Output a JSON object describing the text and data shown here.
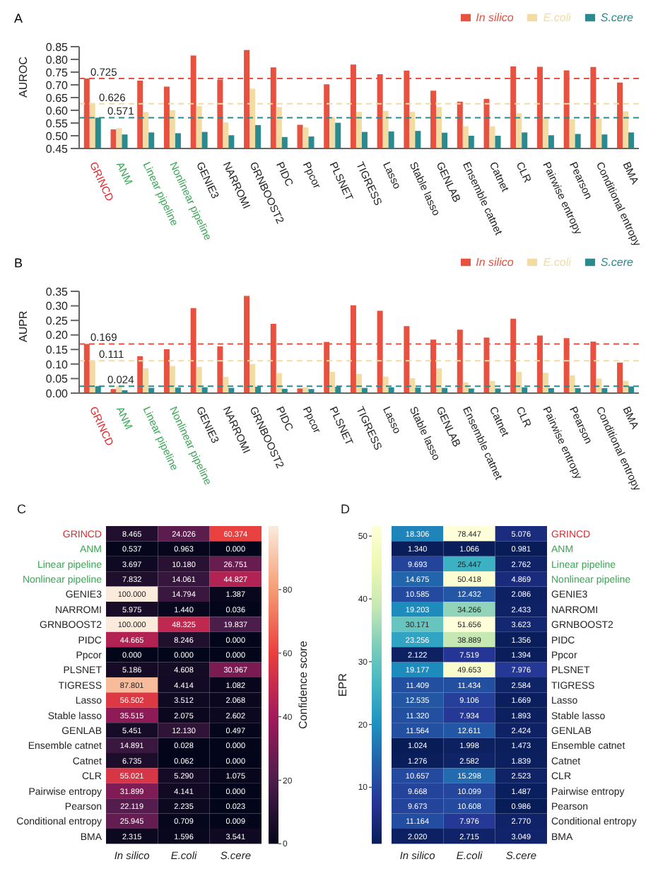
{
  "chart_data": [
    {
      "type": "bar",
      "title": "A",
      "ylabel": "AUROC",
      "categories": [
        "GRINCD",
        "ANM",
        "Linear pipeline",
        "Nonlinear pipeline",
        "GENIE3",
        "NARROMI",
        "GRNBOOST2",
        "PIDC",
        "Ppcor",
        "PLSNET",
        "TIGRESS",
        "Lasso",
        "Stable lasso",
        "GENLAB",
        "Ensemble catnet",
        "Catnet",
        "CLR",
        "Pairwise entropy",
        "Pearson",
        "Conditional entropy",
        "BMA"
      ],
      "series": [
        {
          "name": "In silico",
          "color": "#e8503f",
          "values": [
            0.725,
            0.525,
            0.717,
            0.693,
            0.815,
            0.721,
            0.837,
            0.769,
            0.543,
            0.702,
            0.78,
            0.742,
            0.756,
            0.677,
            0.634,
            0.645,
            0.772,
            0.771,
            0.757,
            0.77,
            0.709
          ]
        },
        {
          "name": "E.coli",
          "color": "#f3dca4",
          "values": [
            0.626,
            0.53,
            0.593,
            0.6,
            0.617,
            0.553,
            0.685,
            0.613,
            0.533,
            0.573,
            0.594,
            0.598,
            0.594,
            0.613,
            0.537,
            0.537,
            0.588,
            0.573,
            0.565,
            0.568,
            0.596
          ]
        },
        {
          "name": "S.cere",
          "color": "#2a8a8f",
          "values": [
            0.571,
            0.505,
            0.513,
            0.51,
            0.515,
            0.502,
            0.542,
            0.495,
            0.497,
            0.551,
            0.515,
            0.517,
            0.519,
            0.512,
            0.5,
            0.5,
            0.513,
            0.502,
            0.507,
            0.505,
            0.513
          ]
        }
      ],
      "ylim": [
        0.45,
        0.85
      ],
      "yticks": [
        0.45,
        {
          "value": 0.5,
          "label": "0.50"
        },
        0.55,
        {
          "value": 0.6,
          "label": "0.60"
        },
        0.65,
        {
          "value": 0.7,
          "label": "0.70"
        },
        0.75,
        {
          "value": 0.8,
          "label": "0.80"
        },
        0.85
      ],
      "legend": "top right",
      "ref_lines": [
        {
          "axis": "y",
          "value": 0.725,
          "label": "0.725",
          "color": "#e8503f",
          "line_style": "dashed"
        },
        {
          "axis": "y",
          "value": 0.626,
          "label": "0.626",
          "color": "#f3dca4",
          "line_style": "dashed"
        },
        {
          "axis": "y",
          "value": 0.571,
          "label": "0.571",
          "color": "#2a8a8f",
          "line_style": "dashed"
        }
      ]
    },
    {
      "type": "bar",
      "title": "B",
      "ylabel": "AUPR",
      "categories": [
        "GRINCD",
        "ANM",
        "Linear pipeline",
        "Nonlinear pipeline",
        "GENIE3",
        "NARROMI",
        "GRNBOOST2",
        "PIDC",
        "Ppcor",
        "PLSNET",
        "TIGRESS",
        "Lasso",
        "Stable lasso",
        "GENLAB",
        "Ensemble catnet",
        "Catnet",
        "CLR",
        "Pairwise entropy",
        "Pearson",
        "Conditional entropy",
        "BMA"
      ],
      "series": [
        {
          "name": "In silico",
          "color": "#e8503f",
          "values": [
            0.169,
            0.014,
            0.127,
            0.151,
            0.292,
            0.161,
            0.334,
            0.238,
            0.016,
            0.176,
            0.302,
            0.283,
            0.23,
            0.184,
            0.218,
            0.191,
            0.256,
            0.198,
            0.189,
            0.177,
            0.105
          ]
        },
        {
          "name": "E.coli",
          "color": "#f3dca4",
          "values": [
            0.111,
            0.025,
            0.085,
            0.093,
            0.09,
            0.056,
            0.1,
            0.069,
            0.02,
            0.073,
            0.066,
            0.057,
            0.051,
            0.085,
            0.037,
            0.042,
            0.073,
            0.07,
            0.061,
            0.05,
            0.042
          ]
        },
        {
          "name": "S.cere",
          "color": "#2a8a8f",
          "values": [
            0.024,
            0.01,
            0.018,
            0.019,
            0.02,
            0.018,
            0.022,
            0.015,
            0.014,
            0.022,
            0.018,
            0.02,
            0.019,
            0.018,
            0.016,
            0.016,
            0.02,
            0.017,
            0.017,
            0.017,
            0.023
          ]
        }
      ],
      "ylim": [
        0,
        0.35
      ],
      "yticks": [
        {
          "value": 0,
          "label": "0.00"
        },
        0.05,
        {
          "value": 0.1,
          "label": "0.10"
        },
        0.15,
        {
          "value": 0.2,
          "label": "0.20"
        },
        0.25,
        {
          "value": 0.3,
          "label": "0.30"
        },
        0.35
      ],
      "legend": "top right",
      "ref_lines": [
        {
          "axis": "y",
          "value": 0.169,
          "label": "0.169",
          "color": "#e8503f",
          "line_style": "dashed"
        },
        {
          "axis": "y",
          "value": 0.111,
          "label": "0.111",
          "color": "#f3dca4",
          "line_style": "dashed"
        },
        {
          "axis": "y",
          "value": 0.024,
          "label": "0.024",
          "color": "#2a8a8f",
          "line_style": "dashed"
        }
      ]
    },
    {
      "type": "heatmap",
      "title": "C",
      "clabel": "Confidence score",
      "data_labels": true,
      "categories": [
        "In silico",
        "E.coli",
        "S.cere"
      ],
      "y_categories": [
        "GRINCD",
        "ANM",
        "Linear pipeline",
        "Nonlinear pipeline",
        "GENIE3",
        "NARROMI",
        "GRNBOOST2",
        "PIDC",
        "Ppcor",
        "PLSNET",
        "TIGRESS",
        "Lasso",
        "Stable lasso",
        "GENLAB",
        "Ensemble catnet",
        "Catnet",
        "CLR",
        "Pairwise entropy",
        "Pearson",
        "Conditional entropy",
        "BMA"
      ],
      "cells": [
        [
          8.465,
          24.026,
          60.374
        ],
        [
          0.537,
          0.963,
          0
        ],
        [
          3.697,
          10.18,
          26.751
        ],
        [
          7.832,
          14.061,
          44.827
        ],
        [
          100,
          14.794,
          1.387
        ],
        [
          5.975,
          1.44,
          0.036
        ],
        [
          100,
          48.325,
          19.837
        ],
        [
          44.665,
          8.246,
          0
        ],
        [
          0,
          0,
          0
        ],
        [
          5.186,
          4.608,
          30.967
        ],
        [
          87.801,
          4.414,
          1.082
        ],
        [
          56.502,
          3.512,
          2.068
        ],
        [
          35.515,
          2.075,
          2.602
        ],
        [
          5.451,
          12.13,
          0.497
        ],
        [
          14.891,
          0.028,
          0
        ],
        [
          6.735,
          0.062,
          0
        ],
        [
          55.021,
          5.29,
          1.075
        ],
        [
          31.899,
          4.141,
          0
        ],
        [
          22.119,
          2.235,
          0.023
        ],
        [
          25.945,
          0.709,
          0.009
        ],
        [
          2.315,
          1.596,
          3.541
        ]
      ],
      "cell_labels": [
        [
          "8.465",
          "24.026",
          "60.374"
        ],
        [
          "0.537",
          "0.963",
          "0.000"
        ],
        [
          "3.697",
          "10.180",
          "26.751"
        ],
        [
          "7.832",
          "14.061",
          "44.827"
        ],
        [
          "100.000",
          "14.794",
          "1.387"
        ],
        [
          "5.975",
          "1.440",
          "0.036"
        ],
        [
          "100.000",
          "48.325",
          "19.837"
        ],
        [
          "44.665",
          "8.246",
          "0.000"
        ],
        [
          "0.000",
          "0.000",
          "0.000"
        ],
        [
          "5.186",
          "4.608",
          "30.967"
        ],
        [
          "87.801",
          "4.414",
          "1.082"
        ],
        [
          "56.502",
          "3.512",
          "2.068"
        ],
        [
          "35.515",
          "2.075",
          "2.602"
        ],
        [
          "5.451",
          "12.130",
          "0.497"
        ],
        [
          "14.891",
          "0.028",
          "0.000"
        ],
        [
          "6.735",
          "0.062",
          "0.000"
        ],
        [
          "55.021",
          "5.290",
          "1.075"
        ],
        [
          "31.899",
          "4.141",
          "0.000"
        ],
        [
          "22.119",
          "2.235",
          "0.023"
        ],
        [
          "25.945",
          "0.709",
          "0.009"
        ],
        [
          "2.315",
          "1.596",
          "3.541"
        ]
      ],
      "clim": [
        0,
        100
      ],
      "cticks": [
        0,
        20,
        40,
        60,
        80
      ]
    },
    {
      "type": "heatmap",
      "title": "D",
      "clabel": "EPR",
      "data_labels": true,
      "categories": [
        "In silico",
        "E.coli",
        "S.cere"
      ],
      "y_categories": [
        "GRINCD",
        "ANM",
        "Linear pipeline",
        "Nonlinear pipeline",
        "GENIE3",
        "NARROMI",
        "GRNBOOST2",
        "PIDC",
        "Ppcor",
        "PLSNET",
        "TIGRESS",
        "Lasso",
        "Stable lasso",
        "GENLAB",
        "Ensemble catnet",
        "Catnet",
        "CLR",
        "Pairwise entropy",
        "Pearson",
        "Conditional entropy",
        "BMA"
      ],
      "cells": [
        [
          18.306,
          78.447,
          5.076
        ],
        [
          1.34,
          1.066,
          0.981
        ],
        [
          9.693,
          25.447,
          2.762
        ],
        [
          14.675,
          50.418,
          4.869
        ],
        [
          10.585,
          12.432,
          2.086
        ],
        [
          19.203,
          34.266,
          2.433
        ],
        [
          30.171,
          51.656,
          3.623
        ],
        [
          23.256,
          38.889,
          1.356
        ],
        [
          2.122,
          7.519,
          1.394
        ],
        [
          19.177,
          49.653,
          7.976
        ],
        [
          11.409,
          11.434,
          2.584
        ],
        [
          12.535,
          9.106,
          1.669
        ],
        [
          11.32,
          7.934,
          1.893
        ],
        [
          11.564,
          12.611,
          2.424
        ],
        [
          1.024,
          1.998,
          1.473
        ],
        [
          1.276,
          2.582,
          1.839
        ],
        [
          10.657,
          15.298,
          2.523
        ],
        [
          9.668,
          10.099,
          1.487
        ],
        [
          9.673,
          10.608,
          0.986
        ],
        [
          11.164,
          7.976,
          2.77
        ],
        [
          2.02,
          2.715,
          3.049
        ]
      ],
      "cell_labels": [
        [
          "18.306",
          "78.447",
          "5.076"
        ],
        [
          "1.340",
          "1.066",
          "0.981"
        ],
        [
          "9.693",
          "25.447",
          "2.762"
        ],
        [
          "14.675",
          "50.418",
          "4.869"
        ],
        [
          "10.585",
          "12.432",
          "2.086"
        ],
        [
          "19.203",
          "34.266",
          "2.433"
        ],
        [
          "30.171",
          "51.656",
          "3.623"
        ],
        [
          "23.256",
          "38.889",
          "1.356"
        ],
        [
          "2.122",
          "7.519",
          "1.394"
        ],
        [
          "19.177",
          "49.653",
          "7.976"
        ],
        [
          "11.409",
          "11.434",
          "2.584"
        ],
        [
          "12.535",
          "9.106",
          "1.669"
        ],
        [
          "11.320",
          "7.934",
          "1.893"
        ],
        [
          "11.564",
          "12.611",
          "2.424"
        ],
        [
          "1.024",
          "1.998",
          "1.473"
        ],
        [
          "1.276",
          "2.582",
          "1.839"
        ],
        [
          "10.657",
          "15.298",
          "2.523"
        ],
        [
          "9.668",
          "10.099",
          "1.487"
        ],
        [
          "9.673",
          "10.608",
          "0.986"
        ],
        [
          "11.164",
          "7.976",
          "2.770"
        ],
        [
          "2.020",
          "2.715",
          "3.049"
        ]
      ],
      "clim": [
        1,
        51.6
      ],
      "cticks": [
        10,
        20,
        30,
        40,
        50
      ]
    }
  ]
}
